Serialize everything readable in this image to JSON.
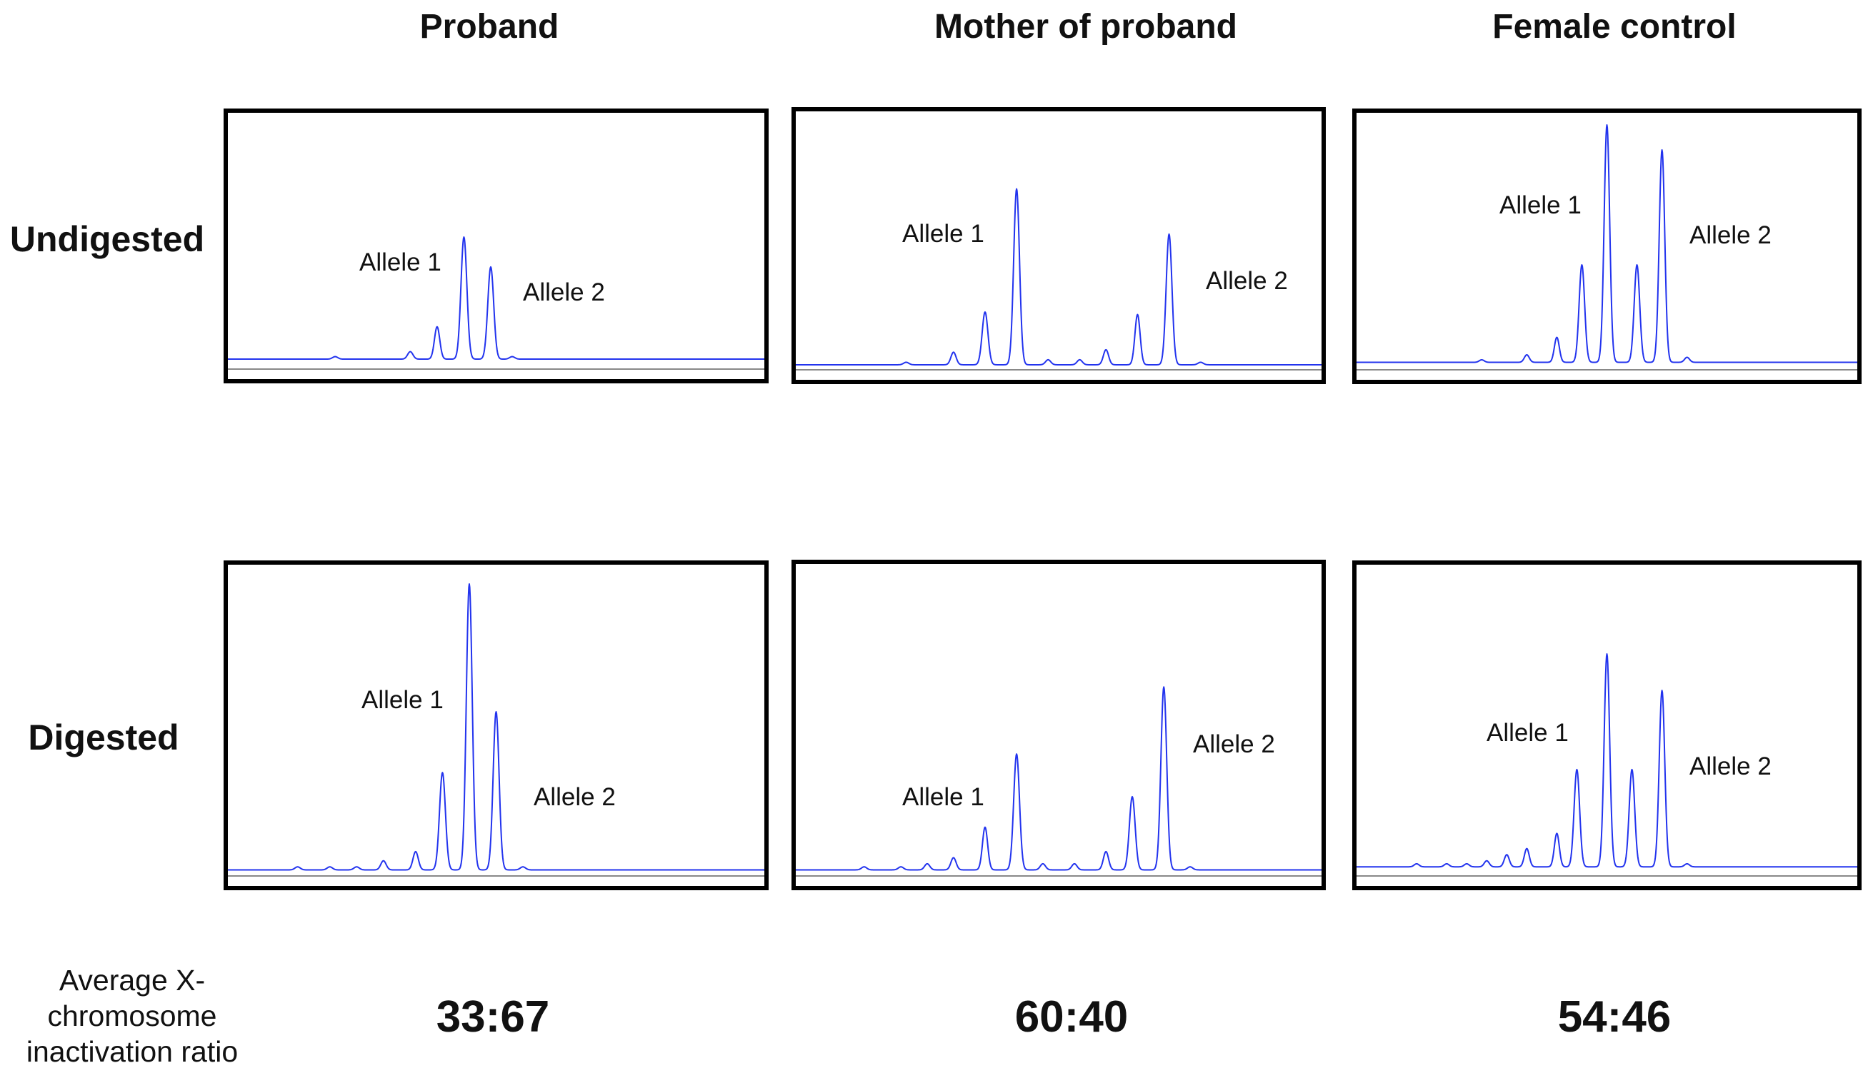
{
  "chart_data": {
    "type": "line",
    "title": "",
    "columns": [
      "Proband",
      "Mother of proband",
      "Female control"
    ],
    "rows": [
      "Undigested",
      "Digested"
    ],
    "ratio_label_lines": [
      "Average X-",
      "chromosome",
      "inactivation ratio"
    ],
    "ratios": [
      "33:67",
      "60:40",
      "54:46"
    ],
    "allele_labels": [
      "Allele 1",
      "Allele 2"
    ],
    "trace_color": "#2233ee",
    "baseline_color": "#888888",
    "x_domain": [
      0,
      100
    ],
    "y_domain": [
      0,
      100
    ],
    "panels": [
      {
        "column": "Proband",
        "row": "Undigested",
        "baseline": 4,
        "peaks": [
          {
            "x": 20,
            "h": 1
          },
          {
            "x": 34,
            "h": 3
          },
          {
            "x": 39,
            "h": 13
          },
          {
            "x": 44,
            "h": 49
          },
          {
            "x": 49,
            "h": 37
          },
          {
            "x": 53,
            "h": 1
          }
        ]
      },
      {
        "column": "Mother of proband",
        "row": "Undigested",
        "baseline": 2,
        "peaks": [
          {
            "x": 21,
            "h": 1
          },
          {
            "x": 30,
            "h": 5
          },
          {
            "x": 36,
            "h": 21
          },
          {
            "x": 42,
            "h": 70
          },
          {
            "x": 48,
            "h": 2
          },
          {
            "x": 54,
            "h": 2
          },
          {
            "x": 59,
            "h": 6
          },
          {
            "x": 65,
            "h": 20
          },
          {
            "x": 71,
            "h": 52
          },
          {
            "x": 77,
            "h": 1
          }
        ]
      },
      {
        "column": "Female control",
        "row": "Undigested",
        "baseline": 3,
        "peaks": [
          {
            "x": 25,
            "h": 1
          },
          {
            "x": 34,
            "h": 3
          },
          {
            "x": 40,
            "h": 10
          },
          {
            "x": 45,
            "h": 39
          },
          {
            "x": 50,
            "h": 95
          },
          {
            "x": 56,
            "h": 39
          },
          {
            "x": 61,
            "h": 85
          },
          {
            "x": 66,
            "h": 2
          }
        ]
      },
      {
        "column": "Proband",
        "row": "Digested",
        "baseline": 2,
        "peaks": [
          {
            "x": 13,
            "h": 1
          },
          {
            "x": 19,
            "h": 1
          },
          {
            "x": 24,
            "h": 1
          },
          {
            "x": 29,
            "h": 3
          },
          {
            "x": 35,
            "h": 6
          },
          {
            "x": 40,
            "h": 32
          },
          {
            "x": 45,
            "h": 94
          },
          {
            "x": 50,
            "h": 52
          },
          {
            "x": 55,
            "h": 1
          }
        ]
      },
      {
        "column": "Mother of proband",
        "row": "Digested",
        "baseline": 2,
        "peaks": [
          {
            "x": 13,
            "h": 1
          },
          {
            "x": 20,
            "h": 1
          },
          {
            "x": 25,
            "h": 2
          },
          {
            "x": 30,
            "h": 4
          },
          {
            "x": 36,
            "h": 14
          },
          {
            "x": 42,
            "h": 38
          },
          {
            "x": 47,
            "h": 2
          },
          {
            "x": 53,
            "h": 2
          },
          {
            "x": 59,
            "h": 6
          },
          {
            "x": 64,
            "h": 24
          },
          {
            "x": 70,
            "h": 60
          },
          {
            "x": 75,
            "h": 1
          }
        ]
      },
      {
        "column": "Female control",
        "row": "Digested",
        "baseline": 3,
        "peaks": [
          {
            "x": 12,
            "h": 1
          },
          {
            "x": 18,
            "h": 1
          },
          {
            "x": 22,
            "h": 1
          },
          {
            "x": 26,
            "h": 2
          },
          {
            "x": 30,
            "h": 4
          },
          {
            "x": 34,
            "h": 6
          },
          {
            "x": 40,
            "h": 11
          },
          {
            "x": 44,
            "h": 32
          },
          {
            "x": 50,
            "h": 70
          },
          {
            "x": 55,
            "h": 32
          },
          {
            "x": 61,
            "h": 58
          },
          {
            "x": 66,
            "h": 1
          }
        ]
      }
    ]
  }
}
